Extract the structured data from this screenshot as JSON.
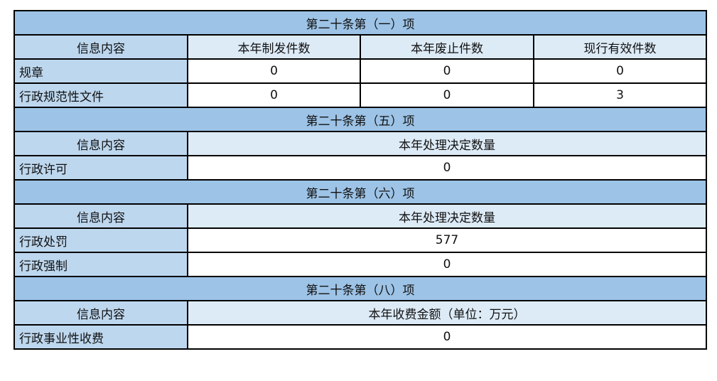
{
  "colors": {
    "section": "#9dc3e6",
    "label": "#bdd7ee",
    "header": "#ddebf7"
  },
  "s1": {
    "title": "第二十条第（一）项",
    "head": [
      "信息内容",
      "本年制发件数",
      "本年废止件数",
      "现行有效件数"
    ],
    "rows": [
      {
        "label": "规章",
        "v": [
          "0",
          "0",
          "0"
        ]
      },
      {
        "label": "行政规范性文件",
        "v": [
          "0",
          "0",
          "3"
        ]
      }
    ]
  },
  "s5": {
    "title": "第二十条第（五）项",
    "head": [
      "信息内容",
      "本年处理决定数量"
    ],
    "rows": [
      {
        "label": "行政许可",
        "v": "0"
      }
    ]
  },
  "s6": {
    "title": "第二十条第（六）项",
    "head": [
      "信息内容",
      "本年处理决定数量"
    ],
    "rows": [
      {
        "label": "行政处罚",
        "v": "577"
      },
      {
        "label": "行政强制",
        "v": "0"
      }
    ]
  },
  "s8": {
    "title": "第二十条第（八）项",
    "head": [
      "信息内容",
      "本年收费金额（单位：万元）"
    ],
    "rows": [
      {
        "label": "行政事业性收费",
        "v": "0"
      }
    ]
  }
}
